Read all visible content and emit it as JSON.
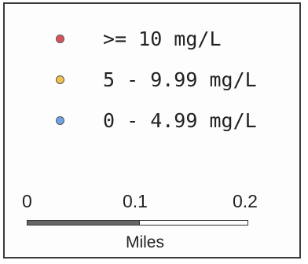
{
  "legend": {
    "items": [
      {
        "label": ">= 10 mg/L",
        "color": "#d9545a"
      },
      {
        "label": "5 - 9.99 mg/L",
        "color": "#f1c24b"
      },
      {
        "label": "0 - 4.99 mg/L",
        "color": "#6fa3e6"
      }
    ]
  },
  "scalebar": {
    "ticks": [
      "0",
      "0.1",
      "0.2"
    ],
    "units": "Miles",
    "filled_color": "#666666",
    "empty_color": "#ffffff"
  }
}
